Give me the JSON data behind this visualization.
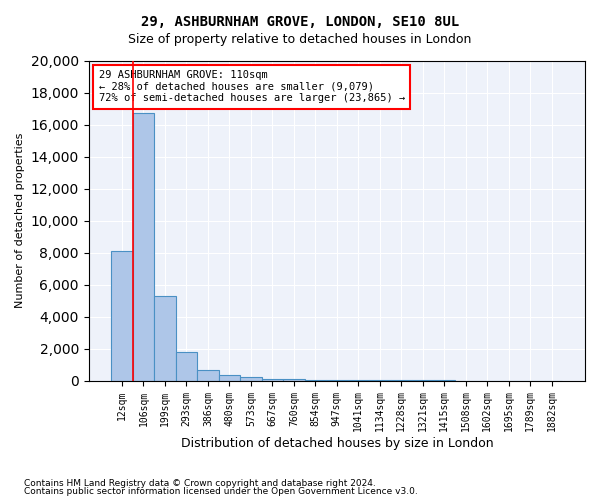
{
  "title1": "29, ASHBURNHAM GROVE, LONDON, SE10 8UL",
  "title2": "Size of property relative to detached houses in London",
  "xlabel": "Distribution of detached houses by size in London",
  "ylabel": "Number of detached properties",
  "bin_labels": [
    "12sqm",
    "106sqm",
    "199sqm",
    "293sqm",
    "386sqm",
    "480sqm",
    "573sqm",
    "667sqm",
    "760sqm",
    "854sqm",
    "947sqm",
    "1041sqm",
    "1134sqm",
    "1228sqm",
    "1321sqm",
    "1415sqm",
    "1508sqm",
    "1602sqm",
    "1695sqm",
    "1789sqm",
    "1882sqm"
  ],
  "bar_heights": [
    8100,
    16700,
    5300,
    1800,
    650,
    350,
    200,
    100,
    70,
    50,
    35,
    25,
    20,
    15,
    10,
    8,
    6,
    4,
    3,
    2,
    1
  ],
  "bar_color": "#aec6e8",
  "bar_edge_color": "#4a90c4",
  "property_line_x": 0.5,
  "annotation_title": "29 ASHBURNHAM GROVE: 110sqm",
  "annotation_line1": "← 28% of detached houses are smaller (9,079)",
  "annotation_line2": "72% of semi-detached houses are larger (23,865) →",
  "ylim": [
    0,
    20000
  ],
  "yticks": [
    0,
    2000,
    4000,
    6000,
    8000,
    10000,
    12000,
    14000,
    16000,
    18000,
    20000
  ],
  "footer1": "Contains HM Land Registry data © Crown copyright and database right 2024.",
  "footer2": "Contains public sector information licensed under the Open Government Licence v3.0.",
  "background_color": "#eef2fa"
}
